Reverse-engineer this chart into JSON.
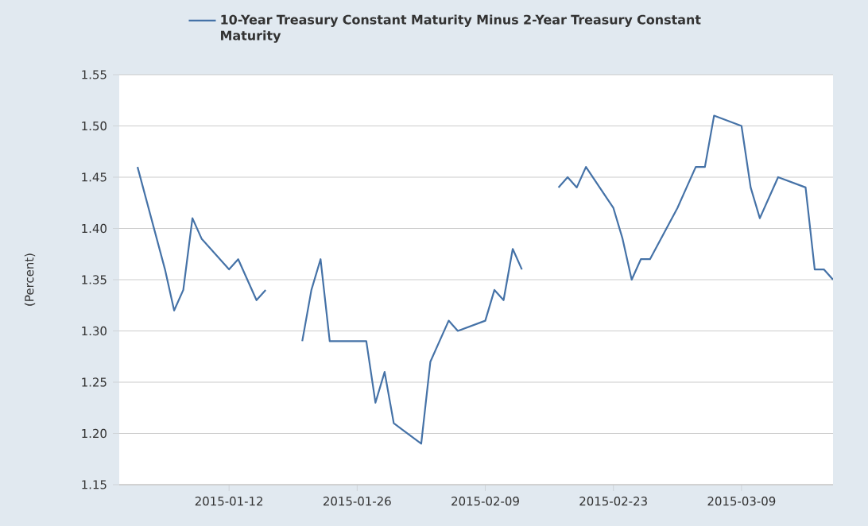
{
  "chart_data": {
    "type": "line",
    "ylabel": "(Percent)",
    "x": [
      "2015-01-02",
      "2015-01-05",
      "2015-01-06",
      "2015-01-07",
      "2015-01-08",
      "2015-01-09",
      "2015-01-12",
      "2015-01-13",
      "2015-01-14",
      "2015-01-15",
      "2015-01-16",
      "2015-01-19",
      "2015-01-20",
      "2015-01-21",
      "2015-01-22",
      "2015-01-23",
      "2015-01-26",
      "2015-01-27",
      "2015-01-28",
      "2015-01-29",
      "2015-01-30",
      "2015-02-02",
      "2015-02-03",
      "2015-02-04",
      "2015-02-05",
      "2015-02-06",
      "2015-02-09",
      "2015-02-10",
      "2015-02-11",
      "2015-02-12",
      "2015-02-13",
      "2015-02-16",
      "2015-02-17",
      "2015-02-18",
      "2015-02-19",
      "2015-02-20",
      "2015-02-23",
      "2015-02-24",
      "2015-02-25",
      "2015-02-26",
      "2015-02-27",
      "2015-03-02",
      "2015-03-03",
      "2015-03-04",
      "2015-03-05",
      "2015-03-06",
      "2015-03-09",
      "2015-03-10",
      "2015-03-11",
      "2015-03-12",
      "2015-03-13",
      "2015-03-16",
      "2015-03-17",
      "2015-03-18",
      "2015-03-19"
    ],
    "series": [
      {
        "name": "10-Year Treasury Constant Maturity Minus 2-Year Treasury Constant Maturity",
        "color": "#4572a7",
        "values": [
          1.46,
          1.36,
          1.32,
          1.34,
          1.41,
          1.39,
          1.36,
          1.37,
          1.35,
          1.33,
          1.34,
          null,
          1.29,
          1.34,
          1.37,
          1.29,
          1.29,
          1.29,
          1.23,
          1.26,
          1.21,
          1.19,
          1.27,
          1.29,
          1.31,
          1.3,
          1.31,
          1.34,
          1.33,
          1.38,
          1.36,
          null,
          1.44,
          1.45,
          1.44,
          1.46,
          1.42,
          1.39,
          1.35,
          1.37,
          1.37,
          1.42,
          1.44,
          1.46,
          1.46,
          1.51,
          1.5,
          1.44,
          1.41,
          1.43,
          1.45,
          1.44,
          1.36,
          1.36,
          1.35
        ]
      }
    ],
    "xlim": [
      "2014-12-31",
      "2015-03-19"
    ],
    "xticks": [
      "2015-01-12",
      "2015-01-26",
      "2015-02-09",
      "2015-02-23",
      "2015-03-09"
    ],
    "ylim": [
      1.15,
      1.55
    ],
    "yticks": [
      {
        "value": 1.15,
        "label": "1.15"
      },
      {
        "value": 1.2,
        "label": "1.20"
      },
      {
        "value": 1.25,
        "label": "1.25"
      },
      {
        "value": 1.3,
        "label": "1.30"
      },
      {
        "value": 1.35,
        "label": "1.35"
      },
      {
        "value": 1.4,
        "label": "1.40"
      },
      {
        "value": 1.45,
        "label": "1.45"
      },
      {
        "value": 1.5,
        "label": "1.50"
      },
      {
        "value": 1.55,
        "label": "1.55"
      }
    ],
    "grid": "y",
    "legend": "top",
    "marker": "none",
    "line_style": "solid"
  }
}
